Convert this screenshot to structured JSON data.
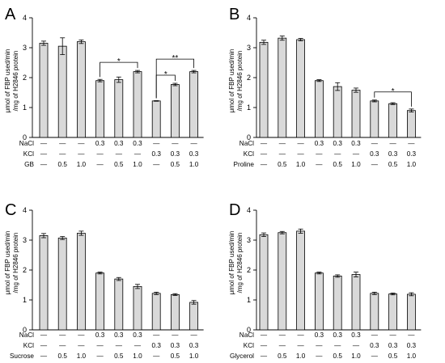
{
  "chart_data": [
    {
      "type": "bar",
      "panel": "A",
      "ylabel": [
        "μmol of FBP used/min",
        "/mg of H2846 protein"
      ],
      "ylim": [
        0,
        4
      ],
      "yticks": [
        "0",
        "1",
        "2",
        "3",
        "4"
      ],
      "values": [
        3.15,
        3.05,
        3.2,
        1.9,
        1.93,
        2.2,
        1.22,
        1.77,
        2.2
      ],
      "errors": [
        0.07,
        0.28,
        0.06,
        0.04,
        0.09,
        0.04,
        0.01,
        0.04,
        0.04
      ],
      "rows": [
        {
          "label": "NaCl",
          "cells": [
            "—",
            "—",
            "—",
            "0.3",
            "0.3",
            "0.3",
            "—",
            "—",
            "—"
          ]
        },
        {
          "label": "KCl",
          "cells": [
            "—",
            "—",
            "—",
            "—",
            "—",
            "—",
            "0.3",
            "0.3",
            "0.3"
          ]
        },
        {
          "label": "GB",
          "cells": [
            "—",
            "0.5",
            "1.0",
            "—",
            "0.5",
            "1.0",
            "—",
            "0.5",
            "1.0"
          ]
        }
      ],
      "significance": [
        {
          "from": 3,
          "to": 5,
          "label": "*"
        },
        {
          "from": 6,
          "to": 7,
          "label": "*"
        },
        {
          "from": 6,
          "to": 8,
          "label": "**"
        }
      ]
    },
    {
      "type": "bar",
      "panel": "B",
      "ylabel": [
        "μmol of FBP used/min",
        "/mg of H2846 protein"
      ],
      "ylim": [
        0,
        4
      ],
      "yticks": [
        "0",
        "1",
        "2",
        "3",
        "4"
      ],
      "values": [
        3.18,
        3.32,
        3.27,
        1.9,
        1.7,
        1.58,
        1.22,
        1.13,
        0.9
      ],
      "errors": [
        0.07,
        0.07,
        0.04,
        0.03,
        0.13,
        0.07,
        0.03,
        0.03,
        0.05
      ],
      "rows": [
        {
          "label": "NaCl",
          "cells": [
            "—",
            "—",
            "—",
            "0.3",
            "0.3",
            "0.3",
            "—",
            "—",
            "—"
          ]
        },
        {
          "label": "KCl",
          "cells": [
            "—",
            "—",
            "—",
            "—",
            "—",
            "—",
            "0.3",
            "0.3",
            "0.3"
          ]
        },
        {
          "label": "Proline",
          "cells": [
            "—",
            "0.5",
            "1.0",
            "—",
            "0.5",
            "1.0",
            "—",
            "0.5",
            "1.0"
          ]
        }
      ],
      "significance": [
        {
          "from": 6,
          "to": 8,
          "label": "*"
        }
      ]
    },
    {
      "type": "bar",
      "panel": "C",
      "ylabel": [
        "μmol of FBP used/min",
        "/mg of H2846 protein"
      ],
      "ylim": [
        0,
        4
      ],
      "yticks": [
        "0",
        "1",
        "2",
        "3",
        "4"
      ],
      "values": [
        3.15,
        3.07,
        3.23,
        1.9,
        1.7,
        1.45,
        1.22,
        1.18,
        0.92
      ],
      "errors": [
        0.07,
        0.05,
        0.07,
        0.03,
        0.05,
        0.07,
        0.04,
        0.03,
        0.06
      ],
      "rows": [
        {
          "label": "NaCl",
          "cells": [
            "—",
            "—",
            "—",
            "0.3",
            "0.3",
            "0.3",
            "—",
            "—",
            "—"
          ]
        },
        {
          "label": "KCl",
          "cells": [
            "—",
            "—",
            "—",
            "—",
            "—",
            "—",
            "0.3",
            "0.3",
            "0.3"
          ]
        },
        {
          "label": "Sucrose",
          "cells": [
            "—",
            "0.5",
            "1.0",
            "—",
            "0.5",
            "1.0",
            "—",
            "0.5",
            "1.0"
          ]
        }
      ],
      "significance": []
    },
    {
      "type": "bar",
      "panel": "D",
      "ylabel": [
        "μmol of FBP used/min",
        "/mg of H2846 protein"
      ],
      "ylim": [
        0,
        4
      ],
      "yticks": [
        "0",
        "1",
        "2",
        "3",
        "4"
      ],
      "values": [
        3.18,
        3.25,
        3.3,
        1.9,
        1.8,
        1.85,
        1.22,
        1.2,
        1.19
      ],
      "errors": [
        0.06,
        0.04,
        0.07,
        0.03,
        0.04,
        0.08,
        0.04,
        0.03,
        0.05
      ],
      "rows": [
        {
          "label": "NaCl",
          "cells": [
            "—",
            "—",
            "—",
            "0.3",
            "0.3",
            "0.3",
            "—",
            "—",
            "—"
          ]
        },
        {
          "label": "KCl",
          "cells": [
            "—",
            "—",
            "—",
            "—",
            "—",
            "—",
            "0.3",
            "0.3",
            "0.3"
          ]
        },
        {
          "label": "Glycerol",
          "cells": [
            "—",
            "0.5",
            "1.0",
            "—",
            "0.5",
            "1.0",
            "—",
            "0.5",
            "1.0"
          ]
        }
      ],
      "significance": []
    }
  ]
}
